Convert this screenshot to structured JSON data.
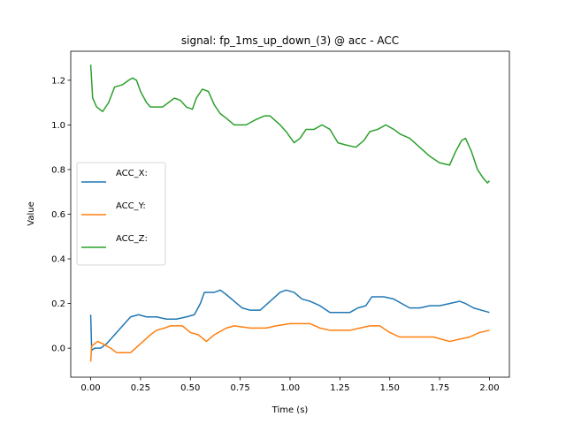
{
  "chart_data": {
    "type": "line",
    "title": "signal: fp_1ms_up_down_(3) @ acc - ACC",
    "xlabel": "Time (s)",
    "ylabel": "Value",
    "xlim": [
      -0.1,
      2.1
    ],
    "ylim": [
      -0.13,
      1.33
    ],
    "xticks": [
      0.0,
      0.25,
      0.5,
      0.75,
      1.0,
      1.25,
      1.5,
      1.75,
      2.0
    ],
    "xtick_labels": [
      "0.00",
      "0.25",
      "0.50",
      "0.75",
      "1.00",
      "1.25",
      "1.50",
      "1.75",
      "2.00"
    ],
    "yticks": [
      0.0,
      0.2,
      0.4,
      0.6,
      0.8,
      1.0,
      1.2
    ],
    "ytick_labels": [
      "0.0",
      "0.2",
      "0.4",
      "0.6",
      "0.8",
      "1.0",
      "1.2"
    ],
    "grid": false,
    "legend_position": "center-left",
    "series": [
      {
        "name": "ACC_X:",
        "color": "#1f77b4",
        "points": [
          [
            0.0,
            0.15
          ],
          [
            0.005,
            -0.01
          ],
          [
            0.02,
            0.0
          ],
          [
            0.05,
            0.0
          ],
          [
            0.08,
            0.02
          ],
          [
            0.12,
            0.06
          ],
          [
            0.16,
            0.1
          ],
          [
            0.2,
            0.14
          ],
          [
            0.24,
            0.15
          ],
          [
            0.28,
            0.14
          ],
          [
            0.33,
            0.14
          ],
          [
            0.38,
            0.13
          ],
          [
            0.43,
            0.13
          ],
          [
            0.48,
            0.14
          ],
          [
            0.52,
            0.15
          ],
          [
            0.55,
            0.2
          ],
          [
            0.57,
            0.25
          ],
          [
            0.62,
            0.25
          ],
          [
            0.65,
            0.26
          ],
          [
            0.68,
            0.24
          ],
          [
            0.72,
            0.21
          ],
          [
            0.76,
            0.18
          ],
          [
            0.8,
            0.17
          ],
          [
            0.85,
            0.17
          ],
          [
            0.9,
            0.21
          ],
          [
            0.95,
            0.25
          ],
          [
            0.98,
            0.26
          ],
          [
            1.02,
            0.25
          ],
          [
            1.06,
            0.22
          ],
          [
            1.1,
            0.21
          ],
          [
            1.15,
            0.19
          ],
          [
            1.2,
            0.16
          ],
          [
            1.25,
            0.16
          ],
          [
            1.3,
            0.16
          ],
          [
            1.34,
            0.18
          ],
          [
            1.38,
            0.19
          ],
          [
            1.41,
            0.23
          ],
          [
            1.47,
            0.23
          ],
          [
            1.52,
            0.22
          ],
          [
            1.56,
            0.2
          ],
          [
            1.6,
            0.18
          ],
          [
            1.65,
            0.18
          ],
          [
            1.7,
            0.19
          ],
          [
            1.75,
            0.19
          ],
          [
            1.8,
            0.2
          ],
          [
            1.85,
            0.21
          ],
          [
            1.88,
            0.2
          ],
          [
            1.92,
            0.18
          ],
          [
            1.96,
            0.17
          ],
          [
            2.0,
            0.16
          ]
        ]
      },
      {
        "name": "ACC_Y:",
        "color": "#ff7f0e",
        "points": [
          [
            0.0,
            -0.06
          ],
          [
            0.005,
            0.01
          ],
          [
            0.02,
            0.02
          ],
          [
            0.035,
            0.03
          ],
          [
            0.06,
            0.02
          ],
          [
            0.1,
            0.0
          ],
          [
            0.13,
            -0.02
          ],
          [
            0.2,
            -0.02
          ],
          [
            0.25,
            0.02
          ],
          [
            0.3,
            0.06
          ],
          [
            0.33,
            0.08
          ],
          [
            0.37,
            0.09
          ],
          [
            0.4,
            0.1
          ],
          [
            0.46,
            0.1
          ],
          [
            0.5,
            0.07
          ],
          [
            0.54,
            0.06
          ],
          [
            0.58,
            0.03
          ],
          [
            0.62,
            0.06
          ],
          [
            0.68,
            0.09
          ],
          [
            0.72,
            0.1
          ],
          [
            0.8,
            0.09
          ],
          [
            0.88,
            0.09
          ],
          [
            0.93,
            0.1
          ],
          [
            1.0,
            0.11
          ],
          [
            1.1,
            0.11
          ],
          [
            1.15,
            0.09
          ],
          [
            1.2,
            0.08
          ],
          [
            1.3,
            0.08
          ],
          [
            1.35,
            0.09
          ],
          [
            1.4,
            0.1
          ],
          [
            1.45,
            0.1
          ],
          [
            1.5,
            0.07
          ],
          [
            1.55,
            0.05
          ],
          [
            1.65,
            0.05
          ],
          [
            1.72,
            0.05
          ],
          [
            1.76,
            0.04
          ],
          [
            1.8,
            0.03
          ],
          [
            1.85,
            0.04
          ],
          [
            1.9,
            0.05
          ],
          [
            1.95,
            0.07
          ],
          [
            2.0,
            0.08
          ]
        ]
      },
      {
        "name": "ACC_Z:",
        "color": "#2ca02c",
        "points": [
          [
            0.0,
            1.27
          ],
          [
            0.01,
            1.12
          ],
          [
            0.03,
            1.08
          ],
          [
            0.06,
            1.06
          ],
          [
            0.09,
            1.1
          ],
          [
            0.12,
            1.17
          ],
          [
            0.16,
            1.18
          ],
          [
            0.19,
            1.2
          ],
          [
            0.21,
            1.21
          ],
          [
            0.23,
            1.2
          ],
          [
            0.25,
            1.15
          ],
          [
            0.28,
            1.1
          ],
          [
            0.3,
            1.08
          ],
          [
            0.36,
            1.08
          ],
          [
            0.39,
            1.1
          ],
          [
            0.42,
            1.12
          ],
          [
            0.45,
            1.11
          ],
          [
            0.48,
            1.08
          ],
          [
            0.51,
            1.07
          ],
          [
            0.53,
            1.12
          ],
          [
            0.56,
            1.16
          ],
          [
            0.59,
            1.15
          ],
          [
            0.62,
            1.09
          ],
          [
            0.65,
            1.05
          ],
          [
            0.68,
            1.03
          ],
          [
            0.72,
            1.0
          ],
          [
            0.78,
            1.0
          ],
          [
            0.82,
            1.02
          ],
          [
            0.87,
            1.04
          ],
          [
            0.9,
            1.04
          ],
          [
            0.95,
            1.0
          ],
          [
            0.98,
            0.97
          ],
          [
            1.02,
            0.92
          ],
          [
            1.05,
            0.94
          ],
          [
            1.08,
            0.98
          ],
          [
            1.12,
            0.98
          ],
          [
            1.16,
            1.0
          ],
          [
            1.2,
            0.98
          ],
          [
            1.24,
            0.92
          ],
          [
            1.28,
            0.91
          ],
          [
            1.33,
            0.9
          ],
          [
            1.37,
            0.93
          ],
          [
            1.4,
            0.97
          ],
          [
            1.44,
            0.98
          ],
          [
            1.48,
            1.0
          ],
          [
            1.52,
            0.98
          ],
          [
            1.55,
            0.96
          ],
          [
            1.6,
            0.94
          ],
          [
            1.65,
            0.9
          ],
          [
            1.7,
            0.86
          ],
          [
            1.75,
            0.83
          ],
          [
            1.8,
            0.82
          ],
          [
            1.83,
            0.88
          ],
          [
            1.86,
            0.93
          ],
          [
            1.88,
            0.94
          ],
          [
            1.91,
            0.88
          ],
          [
            1.94,
            0.8
          ],
          [
            1.97,
            0.76
          ],
          [
            1.99,
            0.74
          ],
          [
            2.0,
            0.75
          ]
        ]
      }
    ]
  }
}
